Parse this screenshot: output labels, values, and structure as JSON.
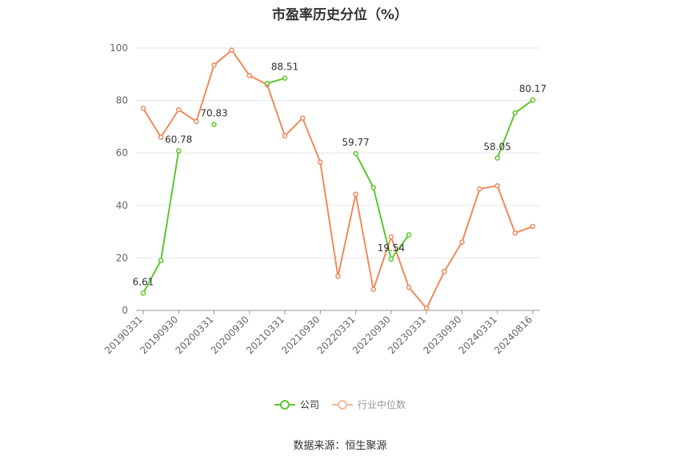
{
  "chart_data": {
    "type": "line",
    "title": "市盈率历史分位（%）",
    "xlabel": "",
    "ylabel": "",
    "ylim": [
      0,
      100
    ],
    "yticks": [
      0,
      20,
      40,
      60,
      80,
      100
    ],
    "x": [
      "20190331",
      "20190630",
      "20190930",
      "20191231",
      "20200331",
      "20200630",
      "20200930",
      "20201231",
      "20210331",
      "20210630",
      "20210930",
      "20211231",
      "20220331",
      "20220630",
      "20220930",
      "20221231",
      "20230331",
      "20230630",
      "20230930",
      "20231231",
      "20240331",
      "20240630",
      "20240816"
    ],
    "xtick_labels": [
      "20190331",
      "20190930",
      "20200331",
      "20200930",
      "20210331",
      "20210930",
      "20220331",
      "20220930",
      "20230331",
      "20230930",
      "20240331",
      "20240816"
    ],
    "series": [
      {
        "name": "公司",
        "color": "#5cc72e",
        "values": [
          6.61,
          19.0,
          60.78,
          null,
          70.83,
          null,
          null,
          86.5,
          88.51,
          null,
          null,
          null,
          59.77,
          46.8,
          19.54,
          28.8,
          null,
          null,
          null,
          null,
          58.05,
          75.3,
          80.17
        ],
        "labels": {
          "0": "6.61",
          "2": "60.78",
          "4": "70.83",
          "8": "88.51",
          "12": "59.77",
          "14": "19.54",
          "20": "58.05",
          "22": "80.17"
        }
      },
      {
        "name": "行业中位数",
        "color": "#f08a5d",
        "values": [
          77.0,
          66.0,
          76.5,
          72.0,
          93.5,
          99.2,
          89.5,
          86.0,
          66.5,
          73.3,
          56.5,
          13.0,
          44.3,
          8.0,
          28.0,
          8.8,
          0.8,
          14.8,
          26.0,
          46.3,
          47.5,
          29.5,
          32.0
        ]
      }
    ],
    "grid": true,
    "legend_position": "bottom-center"
  },
  "legend": {
    "company": "公司",
    "industry": "行业中位数"
  },
  "source": "数据来源：恒生聚源"
}
